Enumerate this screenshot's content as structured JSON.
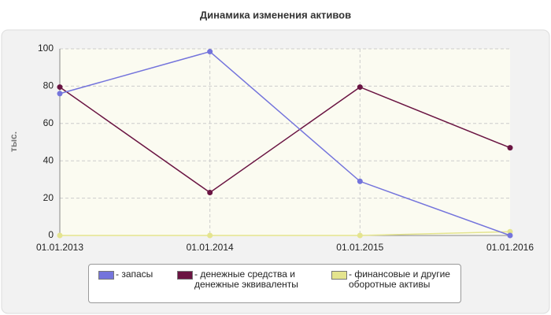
{
  "chart_data": {
    "type": "line",
    "title": "Динамика изменения активов",
    "y_label": "тыс.",
    "categories": [
      "01.01.2013",
      "01.01.2014",
      "01.01.2015",
      "01.01.2016"
    ],
    "series": [
      {
        "name": "- запасы",
        "color": "#7474dc",
        "values": [
          76,
          98.5,
          29,
          0
        ]
      },
      {
        "name": "- денежные средства и денежные эквиваленты",
        "color": "#6a1442",
        "values": [
          79.5,
          23,
          79.5,
          47
        ]
      },
      {
        "name": "- финансовые и другие оборотные активы",
        "color": "#e4e48e",
        "values": [
          0,
          0,
          0,
          2
        ]
      }
    ],
    "ylim": [
      0,
      100
    ],
    "yticks": [
      0,
      20,
      40,
      60,
      80,
      100
    ],
    "grid": true
  }
}
